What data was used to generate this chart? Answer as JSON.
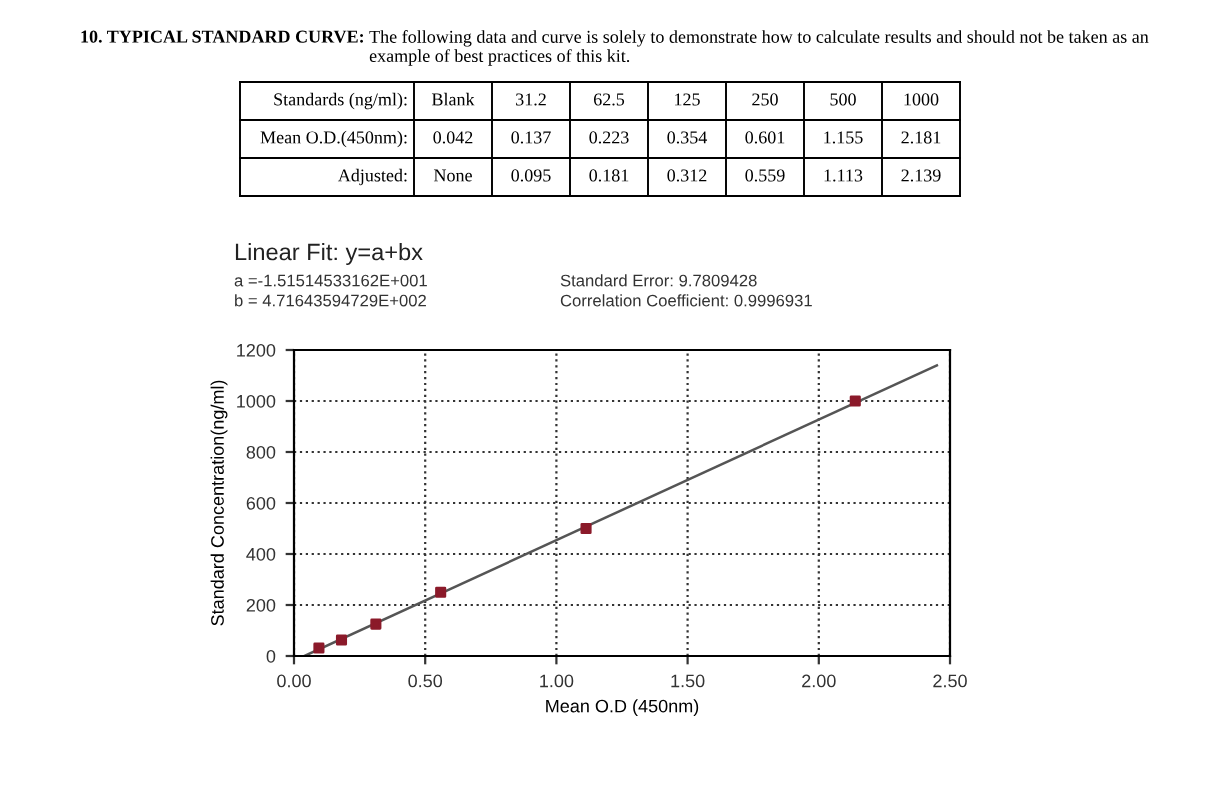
{
  "chart_data": [
    {
      "type": "other",
      "title": "10. TYPICAL STANDARD CURVE:",
      "subtitle": "The following data and curve is solely to demonstrate how to calculate results and should not be taken as an example of best practices of this kit.",
      "xlabel": "Standards (ng/ml):",
      "categories": [
        "Blank",
        "31.2",
        "62.5",
        "125",
        "250",
        "500",
        "1000"
      ],
      "series": [
        {
          "name": "Mean O.D.(450nm):",
          "values": [
            0.042,
            0.137,
            0.223,
            0.354,
            0.601,
            1.155,
            2.181
          ],
          "value_labels": [
            "0.042",
            "0.137",
            "0.223",
            "0.354",
            "0.601",
            "1.155",
            "2.181"
          ]
        },
        {
          "name": "Adjusted:",
          "values": [
            null,
            0.095,
            0.181,
            0.312,
            0.559,
            1.113,
            2.139
          ],
          "value_labels": [
            "None",
            "0.095",
            "0.181",
            "0.312",
            "0.559",
            "1.113",
            "2.139"
          ]
        }
      ]
    },
    {
      "type": "scatter",
      "title": "Linear Fit: y=a+bx",
      "annotations": [
        "a =-1.51514533162E+001",
        "b = 4.71643594729E+002",
        "Standard Error: 9.7809428",
        "Correlation Coefficient: 0.9996931"
      ],
      "xlabel": "Mean O.D (450nm)",
      "ylabel": "Standard Concentration(ng/ml)",
      "xlim": [
        0,
        2.5
      ],
      "ylim": [
        0,
        1200
      ],
      "xticks": [
        {
          "value": 0,
          "label": "0.00"
        },
        {
          "value": 0.5,
          "label": "0.50"
        },
        {
          "value": 1,
          "label": "1.00"
        },
        {
          "value": 1.5,
          "label": "1.50"
        },
        {
          "value": 2,
          "label": "2.00"
        },
        {
          "value": 2.5,
          "label": "2.50"
        }
      ],
      "yticks": [
        0,
        200,
        400,
        600,
        800,
        1000,
        1200
      ],
      "grid": true,
      "series": [
        {
          "type": "line",
          "x": [
            0.04,
            2.45
          ],
          "values": [
            0,
            1140
          ],
          "color": "#555555",
          "line_style": "solid",
          "marker": "none"
        },
        {
          "type": "scatter",
          "x": [
            0.095,
            0.181,
            0.312,
            0.559,
            1.113,
            2.139
          ],
          "values": [
            31.2,
            62.5,
            125,
            250,
            500,
            1000
          ],
          "color": "#8b1a2a",
          "marker": "square"
        }
      ]
    }
  ]
}
